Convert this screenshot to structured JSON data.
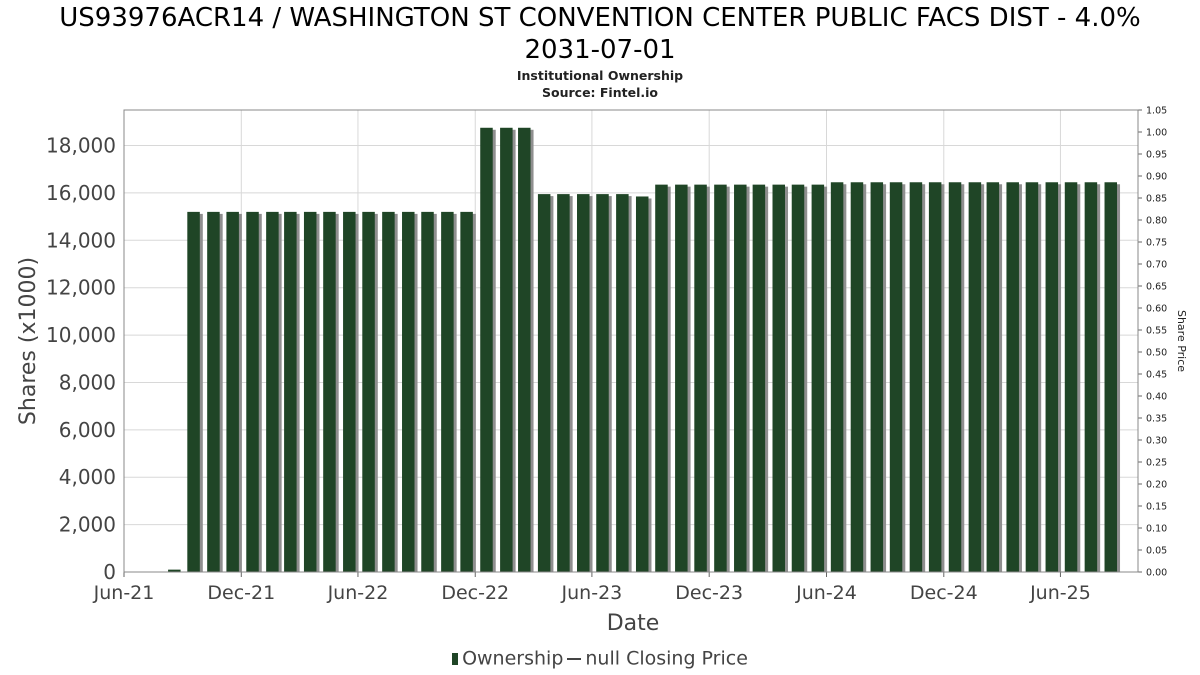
{
  "title_line1": "US93976ACR14 / WASHINGTON ST CONVENTION CENTER PUBLIC FACS DIST - 4.0%",
  "title_line2": "2031-07-01",
  "subtitle_line1": "Institutional Ownership",
  "subtitle_line2": "Source: Fintel.io",
  "legend": {
    "ownership_label": "Ownership",
    "price_label": "null Closing Price"
  },
  "colors": {
    "bar": "#1f4526",
    "bar_shadow": "#8f8f8f",
    "grid": "#d8d8d8",
    "axis_text": "#444444"
  },
  "chart_data": {
    "type": "bar",
    "title": "US93976ACR14 / WASHINGTON ST CONVENTION CENTER PUBLIC FACS DIST - 4.0% 2031-07-01",
    "subtitle": "Institutional Ownership",
    "xlabel": "Date",
    "ylabel": "Shares (x1000)",
    "y2label": "Share Price",
    "x_start": "2021-06-01",
    "x_end": "2025-09-30",
    "ylim": [
      0,
      19500
    ],
    "y_ticks": [
      0,
      2000,
      4000,
      6000,
      8000,
      10000,
      12000,
      14000,
      16000,
      18000
    ],
    "y_tick_labels": [
      "0",
      "2,000",
      "4,000",
      "6,000",
      "8,000",
      "10,000",
      "12,000",
      "14,000",
      "16,000",
      "18,000"
    ],
    "y2lim": [
      0,
      1.05
    ],
    "y2_ticks": [
      "0.00",
      "0.05",
      "0.10",
      "0.15",
      "0.20",
      "0.25",
      "0.30",
      "0.35",
      "0.40",
      "0.45",
      "0.50",
      "0.55",
      "0.60",
      "0.65",
      "0.70",
      "0.75",
      "0.80",
      "0.85",
      "0.90",
      "0.95",
      "1.00",
      "1.05"
    ],
    "x_ticks": [
      {
        "date": "2021-06-01",
        "label": "Jun-21"
      },
      {
        "date": "2021-12-01",
        "label": "Dec-21"
      },
      {
        "date": "2022-06-01",
        "label": "Jun-22"
      },
      {
        "date": "2022-12-01",
        "label": "Dec-22"
      },
      {
        "date": "2023-06-01",
        "label": "Jun-23"
      },
      {
        "date": "2023-12-01",
        "label": "Dec-23"
      },
      {
        "date": "2024-06-01",
        "label": "Jun-24"
      },
      {
        "date": "2024-12-01",
        "label": "Dec-24"
      },
      {
        "date": "2025-06-01",
        "label": "Jun-25"
      }
    ],
    "grid": true,
    "legend_position": "bottom",
    "series": [
      {
        "name": "Ownership",
        "dates": [
          "2021-08-31",
          "2021-09-30",
          "2021-10-31",
          "2021-11-30",
          "2021-12-31",
          "2022-01-31",
          "2022-02-28",
          "2022-03-31",
          "2022-04-30",
          "2022-05-31",
          "2022-06-30",
          "2022-07-31",
          "2022-08-31",
          "2022-09-30",
          "2022-10-31",
          "2022-11-30",
          "2022-12-31",
          "2023-01-31",
          "2023-02-28",
          "2023-03-31",
          "2023-04-30",
          "2023-05-31",
          "2023-06-30",
          "2023-07-31",
          "2023-08-31",
          "2023-09-30",
          "2023-10-31",
          "2023-11-30",
          "2023-12-31",
          "2024-01-31",
          "2024-02-29",
          "2024-03-31",
          "2024-04-30",
          "2024-05-31",
          "2024-06-30",
          "2024-07-31",
          "2024-08-31",
          "2024-09-30",
          "2024-10-31",
          "2024-11-30",
          "2024-12-31",
          "2025-01-31",
          "2025-02-28",
          "2025-03-31",
          "2025-04-30",
          "2025-05-31",
          "2025-06-30",
          "2025-07-31",
          "2025-08-31"
        ],
        "values": [
          100,
          15200,
          15200,
          15200,
          15200,
          15200,
          15200,
          15200,
          15200,
          15200,
          15200,
          15200,
          15200,
          15200,
          15200,
          15200,
          18750,
          18750,
          18750,
          15950,
          15950,
          15950,
          15950,
          15950,
          15850,
          16350,
          16350,
          16350,
          16350,
          16350,
          16350,
          16350,
          16350,
          16350,
          16450,
          16450,
          16450,
          16450,
          16450,
          16450,
          16450,
          16450,
          16450,
          16450,
          16450,
          16450,
          16450,
          16450,
          16450
        ]
      }
    ]
  }
}
